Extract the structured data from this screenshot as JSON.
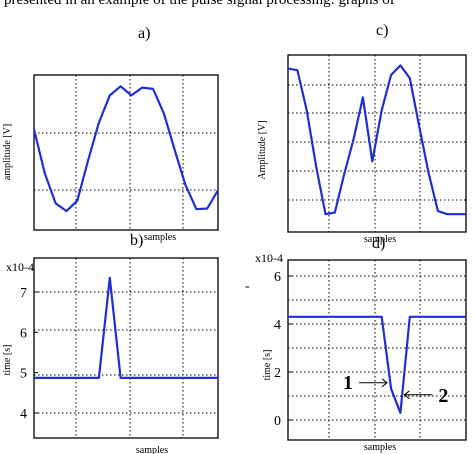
{
  "top_caption": "presented in an example of the pulse signal processing: graphs of",
  "chart_data": [
    {
      "type": "line",
      "panel_label": "a)",
      "title": "",
      "xlabel": "samples",
      "ylabel": "amplitude [V]",
      "y_ticks": [],
      "ylim": [
        0,
        10
      ],
      "x": [
        0,
        1,
        2,
        3,
        4,
        5,
        6,
        7,
        8,
        9,
        10,
        11,
        12,
        13,
        14,
        15,
        16,
        17
      ],
      "series": [
        {
          "values": [
            6.6,
            3.2,
            0.9,
            0.3,
            1.1,
            4.2,
            7.1,
            9.2,
            9.9,
            9.2,
            9.8,
            9.7,
            7.8,
            5.0,
            2.3,
            0.45,
            0.5,
            1.9
          ]
        }
      ],
      "color": "#1f2fd4",
      "grid": true
    },
    {
      "type": "line",
      "panel_label": "b)",
      "title": "",
      "xlabel": "samples",
      "ylabel": "time [s]",
      "scale_label": "x10-4",
      "y_ticks": [
        "4",
        "5",
        "6",
        "7"
      ],
      "ylim": [
        3.5,
        7.8
      ],
      "x": [
        0,
        1,
        2,
        3,
        4,
        5,
        6,
        7,
        8,
        9,
        10,
        11,
        12,
        13,
        14,
        15,
        16,
        17
      ],
      "series": [
        {
          "values": [
            4.87,
            4.87,
            4.87,
            4.87,
            4.87,
            4.87,
            4.87,
            7.35,
            4.87,
            4.87,
            4.87,
            4.87,
            4.87,
            4.87,
            4.87,
            4.87,
            4.87,
            4.87
          ]
        }
      ],
      "color": "#1f2fd4",
      "grid": true
    },
    {
      "type": "line",
      "panel_label": "c)",
      "title": "",
      "xlabel": "samples",
      "ylabel": "Amplitude [V]",
      "y_ticks": [],
      "ylim": [
        0,
        10
      ],
      "x": [
        0,
        1,
        2,
        3,
        4,
        5,
        6,
        7,
        8,
        9,
        10,
        11,
        12,
        13,
        14,
        15,
        16,
        17,
        18,
        19
      ],
      "series": [
        {
          "values": [
            9.4,
            9.3,
            6.8,
            3.3,
            0.3,
            0.4,
            2.8,
            5.0,
            7.6,
            3.6,
            6.8,
            9.0,
            9.6,
            8.8,
            5.8,
            2.9,
            0.5,
            0.3,
            0.3,
            0.3
          ]
        }
      ],
      "color": "#1f2fd4",
      "grid": true
    },
    {
      "type": "line",
      "panel_label": "d)",
      "title": "",
      "xlabel": "samples",
      "ylabel": "time [s]",
      "scale_label": "x10-4",
      "y_ticks": [
        "0",
        "2",
        "4",
        "6"
      ],
      "ylim": [
        -1,
        7.2
      ],
      "x": [
        0,
        1,
        2,
        3,
        4,
        5,
        6,
        7,
        8,
        9,
        10,
        11,
        12,
        13,
        14,
        15,
        16,
        17,
        18,
        19
      ],
      "series": [
        {
          "values": [
            4.3,
            4.3,
            4.3,
            4.3,
            4.3,
            4.3,
            4.3,
            4.3,
            4.3,
            4.3,
            4.3,
            1.3,
            0.3,
            4.3,
            4.3,
            4.3,
            4.3,
            4.3,
            4.3,
            4.3
          ]
        }
      ],
      "annotations": [
        {
          "text": "1",
          "x": 11,
          "y": 1.3
        },
        {
          "text": "2",
          "x": 12,
          "y": 0.3
        }
      ],
      "color": "#1f2fd4",
      "grid": true
    }
  ]
}
